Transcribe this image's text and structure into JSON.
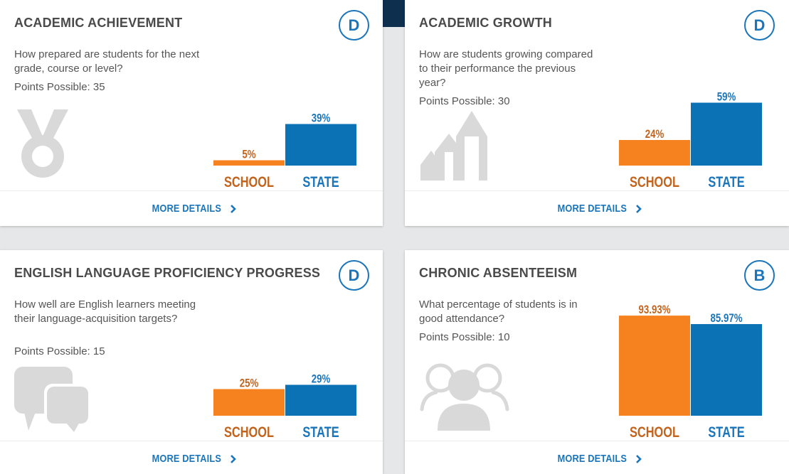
{
  "colors": {
    "school": "#f5821f",
    "state": "#0b72b5",
    "school_label": "#c3641e",
    "state_label": "#1b75bb",
    "icon": "#d9d9d9"
  },
  "cards": [
    {
      "title": "ACADEMIC ACHIEVEMENT",
      "grade": "D",
      "question": "How prepared are students for the next grade, course or level?",
      "points": "Points Possible: 35",
      "icon": "medal-icon",
      "more": "MORE DETAILS",
      "chart_data": {
        "type": "bar",
        "categories": [
          "SCHOOL",
          "STATE"
        ],
        "values": [
          5,
          39
        ],
        "value_labels": [
          "5%",
          "39%"
        ],
        "ylim": [
          0,
          100
        ]
      }
    },
    {
      "title": "ACADEMIC GROWTH",
      "grade": "D",
      "question": "How are students growing compared to their performance the previous year?",
      "points": "Points Possible: 30",
      "icon": "growth-arrows-icon",
      "more": "MORE DETAILS",
      "chart_data": {
        "type": "bar",
        "categories": [
          "SCHOOL",
          "STATE"
        ],
        "values": [
          24,
          59
        ],
        "value_labels": [
          "24%",
          "59%"
        ],
        "ylim": [
          0,
          100
        ]
      }
    },
    {
      "title": "ENGLISH LANGUAGE PROFICIENCY PROGRESS",
      "grade": "D",
      "question": "How well are English learners meeting their language-acquisition targets?",
      "points": "Points Possible: 15",
      "icon": "speech-bubbles-icon",
      "more": "MORE DETAILS",
      "chart_data": {
        "type": "bar",
        "categories": [
          "SCHOOL",
          "STATE"
        ],
        "values": [
          25,
          29
        ],
        "value_labels": [
          "25%",
          "29%"
        ],
        "ylim": [
          0,
          100
        ]
      }
    },
    {
      "title": "CHRONIC ABSENTEEISM",
      "grade": "B",
      "question": "What percentage of students is in good attendance?",
      "points": "Points Possible: 10",
      "icon": "people-icon",
      "more": "MORE DETAILS",
      "chart_data": {
        "type": "bar",
        "categories": [
          "SCHOOL",
          "STATE"
        ],
        "values": [
          93.93,
          85.97
        ],
        "value_labels": [
          "93.93%",
          "85.97%"
        ],
        "ylim": [
          0,
          100
        ]
      }
    }
  ]
}
